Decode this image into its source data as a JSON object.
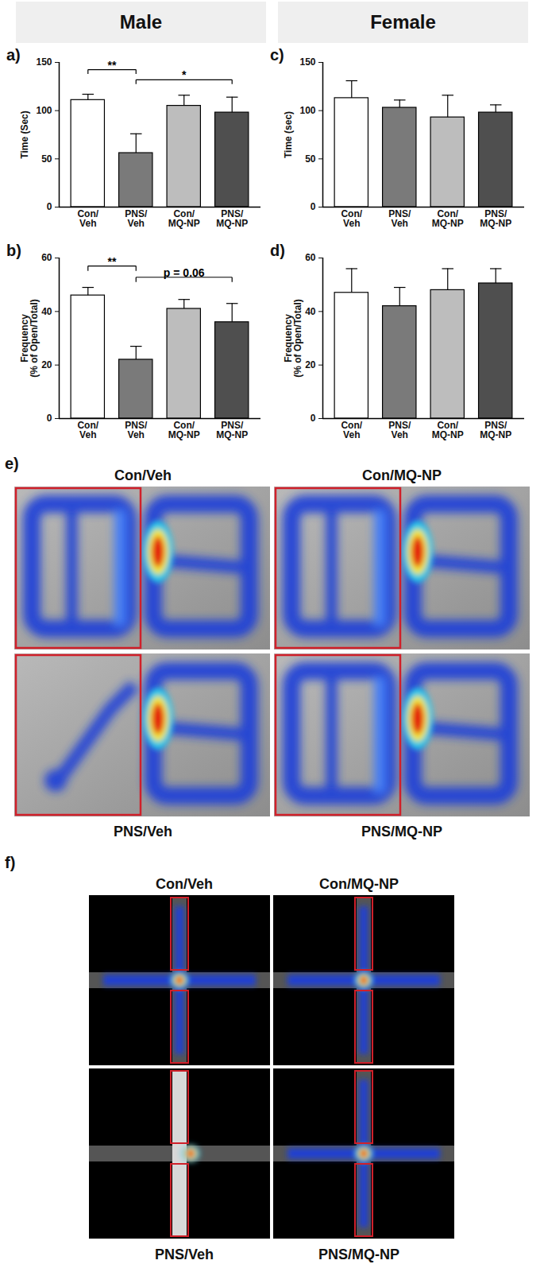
{
  "headers": [
    "Male",
    "Female"
  ],
  "chart_data": [
    {
      "type": "bar",
      "panel": "a)",
      "categories": [
        "Con/Veh",
        "PNS/Veh",
        "Con/MQ-NP",
        "PNS/MQ-NP"
      ],
      "values": [
        111,
        56,
        105,
        98
      ],
      "errors": [
        6,
        20,
        11,
        16
      ],
      "colors": [
        "#ffffff",
        "#7a7a7a",
        "#bdbdbd",
        "#4f4f4f"
      ],
      "ylabel": "Time (Sec)",
      "ylim": [
        0,
        150
      ],
      "yticks": [
        0,
        50,
        100,
        150
      ],
      "annotations": [
        {
          "from": "Con/Veh",
          "to": "PNS/Veh",
          "label": "**"
        },
        {
          "from": "PNS/Veh",
          "to": "PNS/MQ-NP",
          "label": "*"
        }
      ]
    },
    {
      "type": "bar",
      "panel": "b)",
      "categories": [
        "Con/Veh",
        "PNS/Veh",
        "Con/MQ-NP",
        "PNS/MQ-NP"
      ],
      "values": [
        46,
        22,
        41,
        36
      ],
      "errors": [
        3,
        5,
        3.5,
        7
      ],
      "colors": [
        "#ffffff",
        "#7a7a7a",
        "#bdbdbd",
        "#4f4f4f"
      ],
      "ylabel": "Frequency\n(% of Open/Total)",
      "ylim": [
        0,
        60
      ],
      "yticks": [
        0,
        20,
        40,
        60
      ],
      "annotations": [
        {
          "from": "Con/Veh",
          "to": "PNS/Veh",
          "label": "**"
        },
        {
          "from": "PNS/Veh",
          "to": "PNS/MQ-NP",
          "label": "p = 0.06"
        }
      ]
    },
    {
      "type": "bar",
      "panel": "c)",
      "categories": [
        "Con/Veh",
        "PNS/Veh",
        "Con/MQ-NP",
        "PNS/MQ-NP"
      ],
      "values": [
        113,
        103,
        93,
        98
      ],
      "errors": [
        18,
        8,
        23,
        8
      ],
      "colors": [
        "#ffffff",
        "#7a7a7a",
        "#bdbdbd",
        "#4f4f4f"
      ],
      "ylabel": "Time (sec)",
      "ylim": [
        0,
        150
      ],
      "yticks": [
        0,
        50,
        100,
        150
      ],
      "annotations": []
    },
    {
      "type": "bar",
      "panel": "d)",
      "categories": [
        "Con/Veh",
        "PNS/Veh",
        "Con/MQ-NP",
        "PNS/MQ-NP"
      ],
      "values": [
        47,
        42,
        48,
        50.5
      ],
      "errors": [
        9,
        7,
        8,
        5.5
      ],
      "colors": [
        "#ffffff",
        "#7a7a7a",
        "#bdbdbd",
        "#4f4f4f"
      ],
      "ylabel": "Frequency\n(% of Open/Total)",
      "ylim": [
        0,
        60
      ],
      "yticks": [
        0,
        20,
        40,
        60
      ],
      "annotations": []
    }
  ],
  "heatmaps": [
    {
      "panel": "e)",
      "labels": [
        "Con/Veh",
        "Con/MQ-NP",
        "PNS/Veh",
        "PNS/MQ-NP"
      ]
    },
    {
      "panel": "f)",
      "labels": [
        "Con/Veh",
        "Con/MQ-NP",
        "PNS/Veh",
        "PNS/MQ-NP"
      ]
    }
  ]
}
